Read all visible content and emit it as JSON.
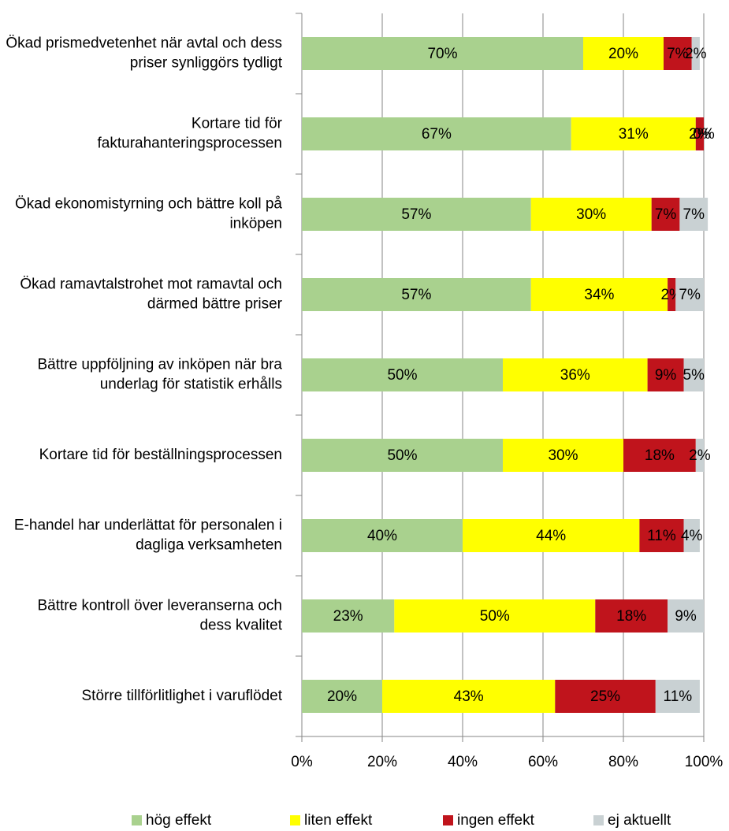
{
  "chart_data": {
    "type": "stacked_bar_horizontal",
    "categories": [
      "Ökad prismedvetenhet när avtal och dess priser synliggörs tydligt",
      "Kortare tid för fakturahanteringsprocessen",
      "Ökad ekonomistyrning och bättre koll på inköpen",
      "Ökad ramavtalstrohet mot ramavtal och därmed bättre priser",
      "Bättre uppföljning av inköpen när bra underlag för statistik erhålls",
      "Kortare tid för beställningsprocessen",
      "E-handel har underlättat för personalen i dagliga verksamheten",
      "Bättre kontroll över leveranserna och dess kvalitet",
      "Större tillförlitlighet i varuflödet"
    ],
    "series": [
      {
        "name": "hög effekt",
        "color": "#a9d18e",
        "values": [
          70,
          67,
          57,
          57,
          50,
          50,
          40,
          23,
          20
        ],
        "value_labels": [
          "70%",
          "67%",
          "57%",
          "57%",
          "50%",
          "50%",
          "40%",
          "23%",
          "20%"
        ]
      },
      {
        "name": "liten effekt",
        "color": "#ffff00",
        "values": [
          20,
          31,
          30,
          34,
          36,
          30,
          44,
          50,
          43
        ],
        "value_labels": [
          "20%",
          "31%",
          "30%",
          "34%",
          "36%",
          "30%",
          "44%",
          "50%",
          "43%"
        ]
      },
      {
        "name": "ingen effekt",
        "color": "#c0141c",
        "values": [
          7,
          2,
          7,
          2,
          9,
          18,
          11,
          18,
          25
        ],
        "value_labels": [
          "7%",
          "2%",
          "7%",
          "2%",
          "9%",
          "18%",
          "11%",
          "18%",
          "25%"
        ]
      },
      {
        "name": "ej aktuellt",
        "color": "#c9d1d3",
        "values": [
          2,
          0,
          7,
          7,
          5,
          2,
          4,
          9,
          11
        ],
        "value_labels": [
          "2%",
          "0%",
          "7%",
          "7%",
          "5%",
          "2%",
          "4%",
          "9%",
          "11%"
        ]
      }
    ],
    "xlim": [
      0,
      100
    ],
    "xticks": [
      {
        "value": 0,
        "label": "0%"
      },
      {
        "value": 20,
        "label": "20%"
      },
      {
        "value": 40,
        "label": "40%"
      },
      {
        "value": 60,
        "label": "60%"
      },
      {
        "value": 80,
        "label": "80%"
      },
      {
        "value": 100,
        "label": "100%"
      }
    ],
    "grid": true,
    "legend": "bottom"
  }
}
